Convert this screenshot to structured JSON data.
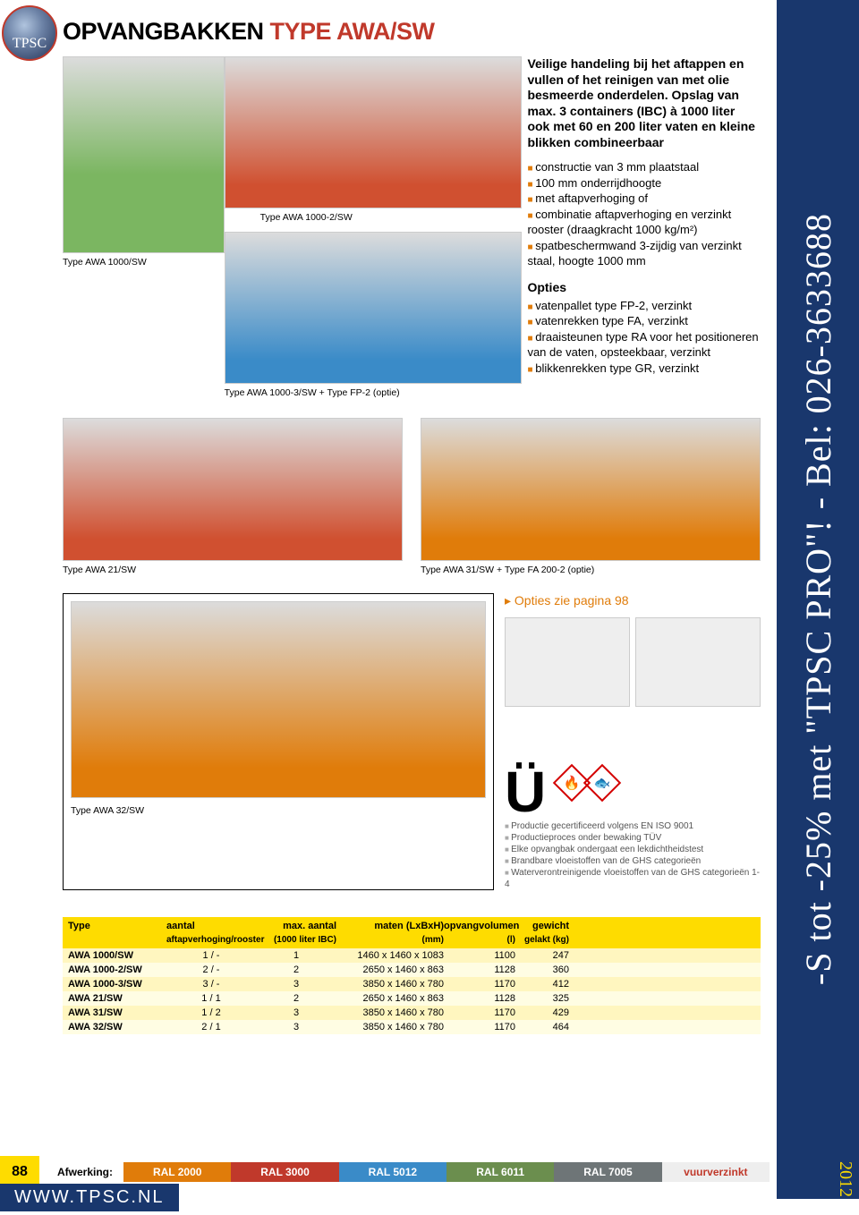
{
  "logo_text": "TPSC",
  "title_black": "OPVANGBAKKEN",
  "title_red": "TYPE AWA/SW",
  "sidebar_text": "-S tot -25% met \"TPSC PRO\"! - Bel: 026-3633688",
  "sidebar_year": "2012",
  "captions": {
    "c1": "Type AWA 1000/SW",
    "c2": "Type AWA 1000-2/SW",
    "c3": "Type AWA 1000-3/SW + Type FP-2 (optie)",
    "c4": "Type AWA 21/SW",
    "c5": "Type AWA 31/SW + Type FA 200-2 (optie)",
    "c6": "Type AWA 32/SW"
  },
  "intro": "Veilige handeling bij het aftappen en vullen of het reinigen van met olie besmeerde onderdelen. Opslag van max. 3 containers (IBC) à 1000 liter ook met 60 en 200 liter vaten en kleine blikken combineerbaar",
  "features": [
    "constructie van 3 mm plaatstaal",
    "100 mm onderrijdhoogte",
    "met aftapverhoging of",
    "combinatie aftapverhoging en verzinkt rooster (draagkracht 1000 kg/m²)",
    "spatbeschermwand 3-zijdig van verzinkt staal, hoogte 1000 mm"
  ],
  "opties_title": "Opties",
  "opties": [
    "vatenpallet type FP-2, verzinkt",
    "vatenrekken type FA, verzinkt",
    "draaisteunen type RA voor het positioneren van de vaten, opsteekbaar, verzinkt",
    "blikkenrekken type GR, verzinkt"
  ],
  "opties_link": "Opties zie pagina 98",
  "table": {
    "headers": [
      "Type",
      "aantal",
      "max. aantal",
      "maten (LxBxH)",
      "opvangvolumen",
      "gewicht"
    ],
    "subheaders": [
      "",
      "aftapverhoging/rooster",
      "(1000 liter IBC)",
      "(mm)",
      "(l)",
      "gelakt (kg)"
    ],
    "rows": [
      [
        "AWA 1000/SW",
        "1 / -",
        "1",
        "1460 x 1460 x 1083",
        "1100",
        "247"
      ],
      [
        "AWA 1000-2/SW",
        "2 / -",
        "2",
        "2650 x 1460 x  863",
        "1128",
        "360"
      ],
      [
        "AWA 1000-3/SW",
        "3 / -",
        "3",
        "3850 x 1460 x  780",
        "1170",
        "412"
      ],
      [
        "AWA 21/SW",
        "1 / 1",
        "2",
        "2650 x 1460 x  863",
        "1128",
        "325"
      ],
      [
        "AWA 31/SW",
        "1 / 2",
        "3",
        "3850 x 1460 x  780",
        "1170",
        "429"
      ],
      [
        "AWA 32/SW",
        "2 / 1",
        "3",
        "3850 x 1460 x  780",
        "1170",
        "464"
      ]
    ]
  },
  "cert": {
    "mark": "Ü",
    "items": [
      "Productie gecertificeerd volgens EN ISO 9001",
      "Productieproces onder bewaking TÜV",
      "Elke opvangbak ondergaat een lekdichtheidstest",
      "Brandbare vloeistoffen van de GHS categorieën",
      "Waterverontreinigende vloeistoffen van de GHS categorieën 1-4"
    ]
  },
  "footer": {
    "page": "88",
    "label": "Afwerking:",
    "chips": [
      {
        "label": "RAL 2000",
        "color": "#e07c0a"
      },
      {
        "label": "RAL 3000",
        "color": "#c0392b"
      },
      {
        "label": "RAL 5012",
        "color": "#3a8bc8"
      },
      {
        "label": "RAL 6011",
        "color": "#6b8e4e"
      },
      {
        "label": "RAL 7005",
        "color": "#6e7577"
      },
      {
        "label": "vuurverzinkt",
        "color": "#bbb",
        "fg": "#c0392b"
      }
    ],
    "site": "WWW.TPSC.NL"
  }
}
